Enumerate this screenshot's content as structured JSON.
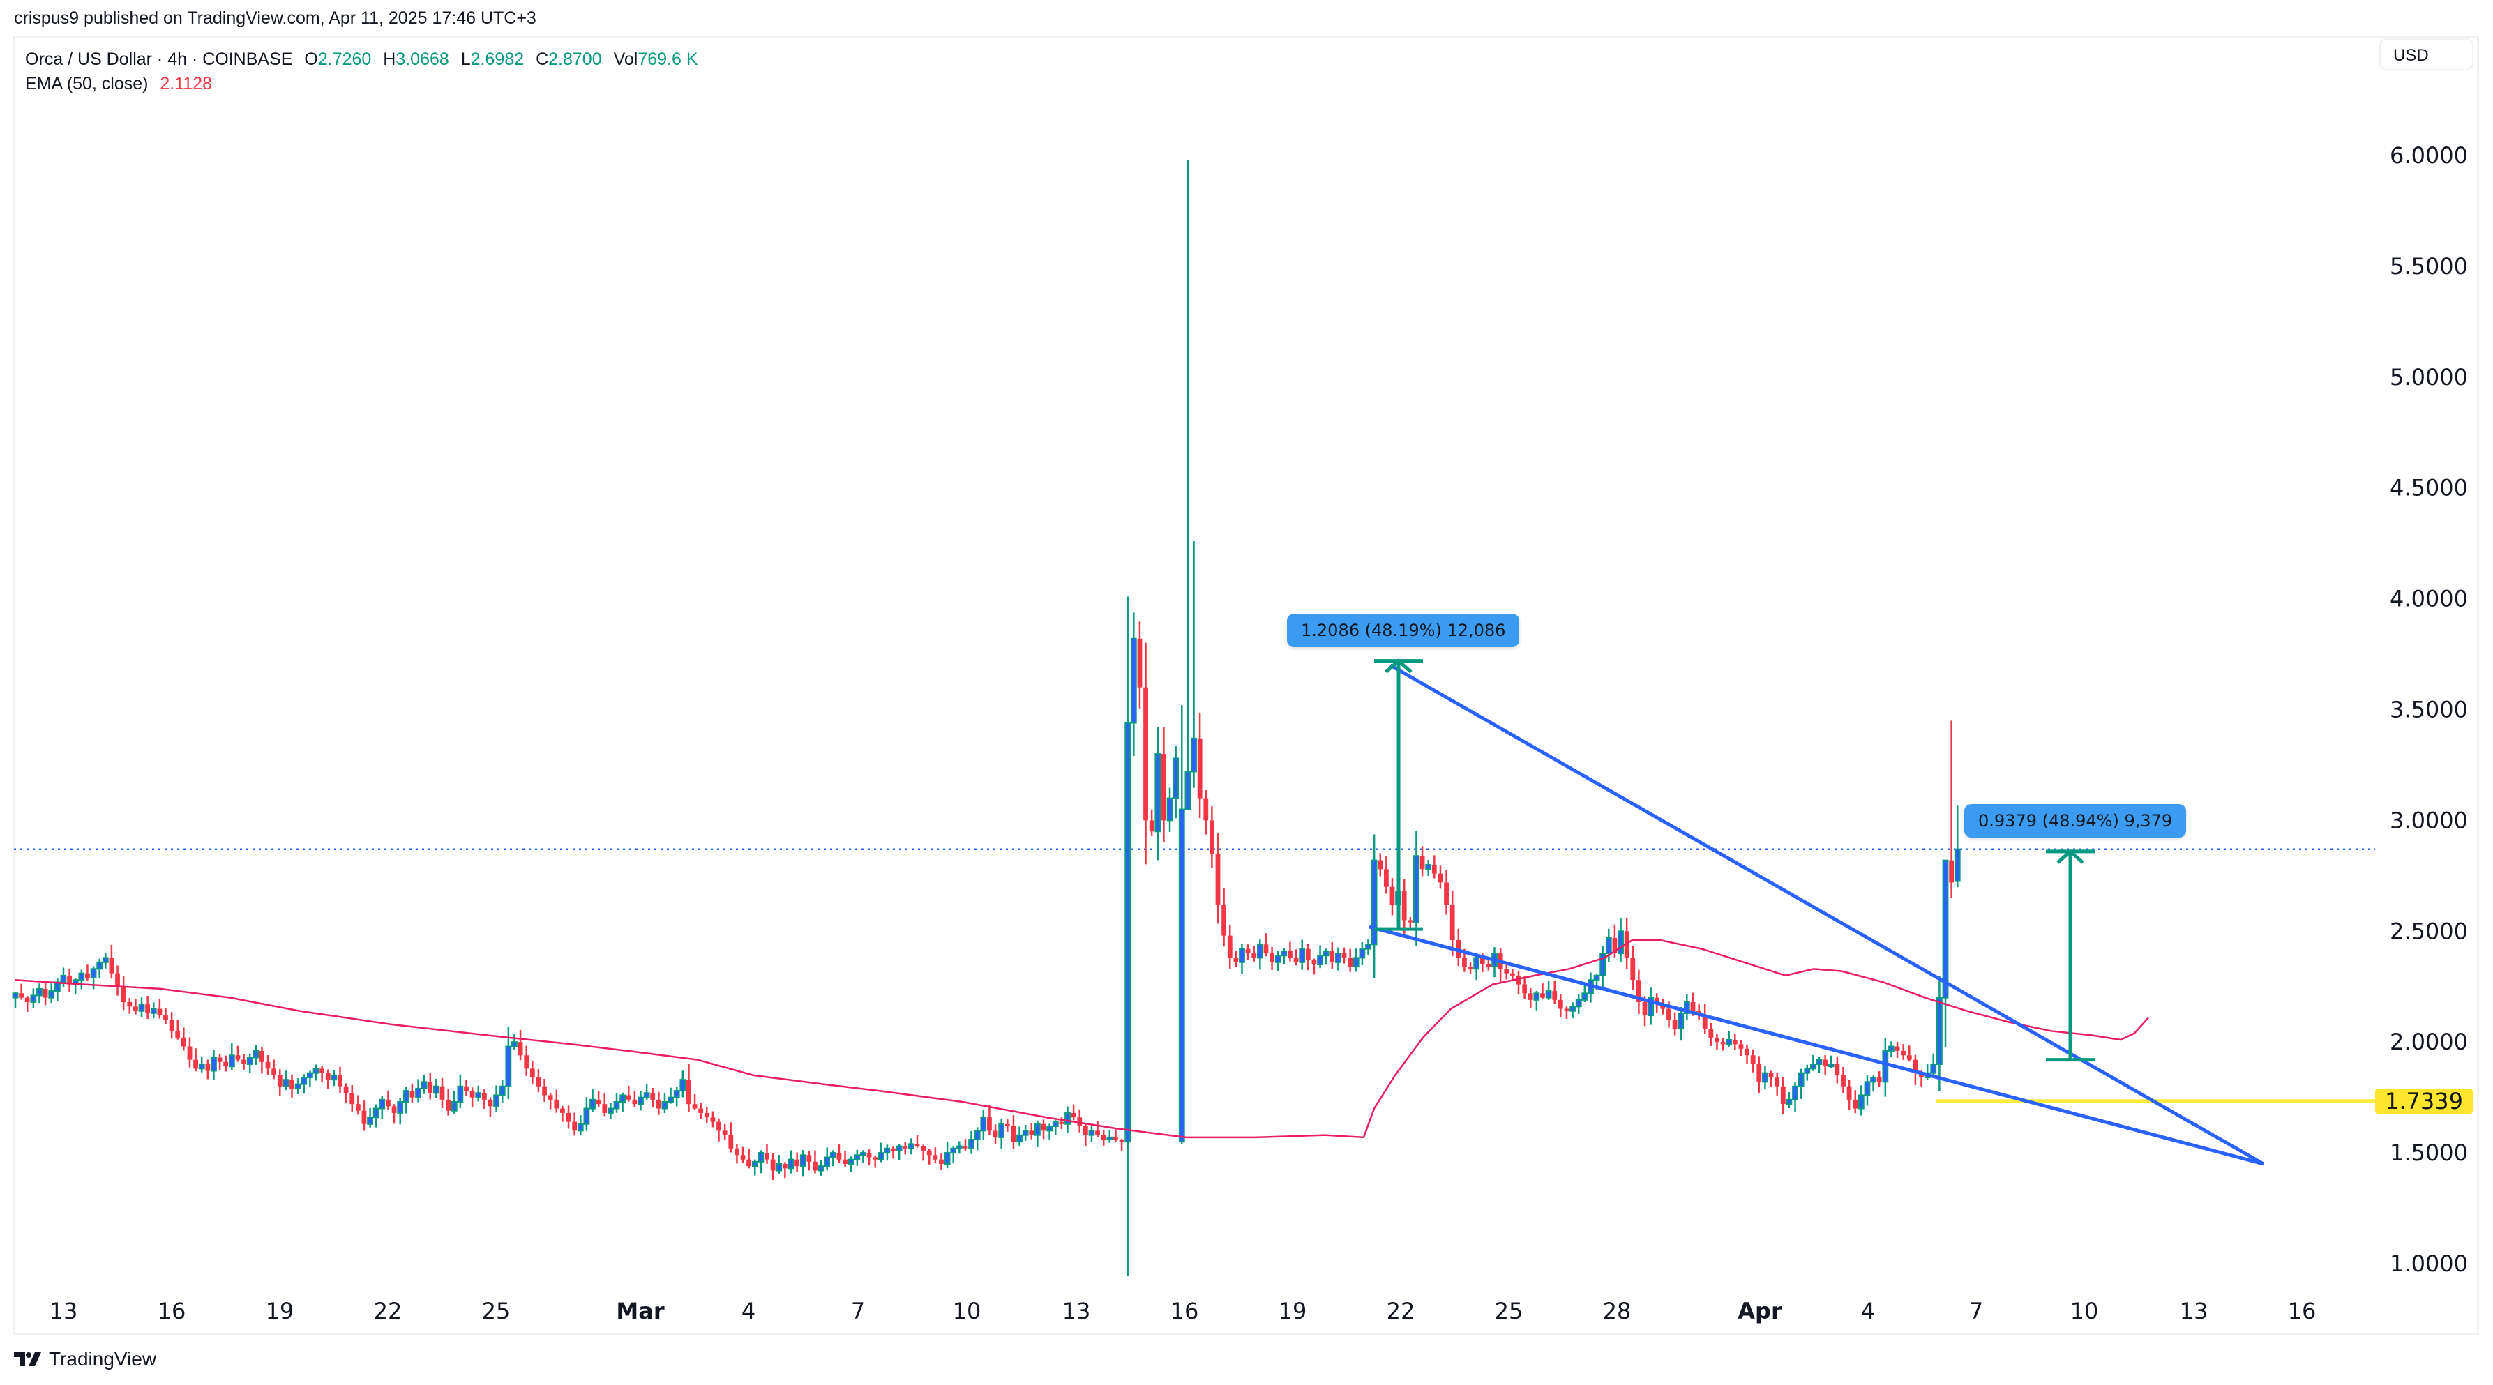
{
  "header": {
    "published": "crispus9 published on TradingView.com, Apr 11, 2025 17:46 UTC+3"
  },
  "legend": {
    "symbol": "Orca / US Dollar · 4h · COINBASE",
    "open_label": "O",
    "open": "2.7260",
    "high_label": "H",
    "high": "3.0668",
    "low_label": "L",
    "low": "2.6982",
    "close_label": "C",
    "close": "2.8700",
    "vol_label": "Vol",
    "vol": "769.6 K",
    "ema_label": "EMA (50, close)",
    "ema_value": "2.1128"
  },
  "currency_button": "USD",
  "footer": {
    "brand": "TradingView"
  },
  "colors": {
    "up_body": "#2962ff",
    "up_border": "#089981",
    "down": "#f23645",
    "ema": "#e91e63",
    "trendline": "#2962ff",
    "support": "#ffeb3b",
    "measure": "#089981",
    "label_bg": "#3a9bf0"
  },
  "annotations": {
    "measure1": "1.2086 (48.19%) 12,086",
    "measure2": "0.9379 (48.94%) 9,379",
    "support_price": "1.7339"
  },
  "chart_data": {
    "type": "candlestick",
    "title": "Orca / US Dollar · 4h · COINBASE",
    "xlabel": "",
    "ylabel": "USD",
    "ylim": [
      0.85,
      6.35
    ],
    "y_ticks": [
      "6.0000",
      "5.5000",
      "5.0000",
      "4.5000",
      "4.0000",
      "3.5000",
      "3.0000",
      "2.5000",
      "2.0000",
      "1.5000",
      "1.0000"
    ],
    "x_ticks": [
      {
        "label": "13",
        "x": 91
      },
      {
        "label": "16",
        "x": 246
      },
      {
        "label": "19",
        "x": 401
      },
      {
        "label": "22",
        "x": 556
      },
      {
        "label": "25",
        "x": 711
      },
      {
        "label": "Mar",
        "x": 918,
        "month": true
      },
      {
        "label": "4",
        "x": 1073
      },
      {
        "label": "7",
        "x": 1230
      },
      {
        "label": "10",
        "x": 1386
      },
      {
        "label": "13",
        "x": 1543
      },
      {
        "label": "16",
        "x": 1698
      },
      {
        "label": "19",
        "x": 1853
      },
      {
        "label": "22",
        "x": 2008
      },
      {
        "label": "25",
        "x": 2163
      },
      {
        "label": "28",
        "x": 2318
      },
      {
        "label": "Apr",
        "x": 2523,
        "month": true
      },
      {
        "label": "4",
        "x": 2678
      },
      {
        "label": "7",
        "x": 2833
      },
      {
        "label": "10",
        "x": 2988
      },
      {
        "label": "13",
        "x": 3145
      },
      {
        "label": "16",
        "x": 3300
      }
    ],
    "grid": false,
    "last_price": 2.87,
    "support_level": 1.7339,
    "ema_period": 50,
    "ema_last": 2.1128,
    "candle_x0": 22,
    "candle_step": 8.62,
    "closes": [
      2.22,
      2.2,
      2.18,
      2.21,
      2.24,
      2.2,
      2.23,
      2.27,
      2.3,
      2.26,
      2.28,
      2.31,
      2.29,
      2.33,
      2.36,
      2.38,
      2.31,
      2.25,
      2.18,
      2.16,
      2.14,
      2.17,
      2.13,
      2.15,
      2.12,
      2.1,
      2.05,
      2.02,
      1.98,
      1.92,
      1.88,
      1.9,
      1.87,
      1.93,
      1.91,
      1.89,
      1.94,
      1.92,
      1.9,
      1.93,
      1.96,
      1.91,
      1.88,
      1.85,
      1.8,
      1.83,
      1.79,
      1.81,
      1.84,
      1.86,
      1.88,
      1.86,
      1.83,
      1.85,
      1.8,
      1.77,
      1.72,
      1.69,
      1.63,
      1.66,
      1.7,
      1.74,
      1.71,
      1.68,
      1.73,
      1.78,
      1.75,
      1.79,
      1.82,
      1.77,
      1.8,
      1.74,
      1.69,
      1.73,
      1.8,
      1.78,
      1.75,
      1.77,
      1.74,
      1.71,
      1.76,
      1.8,
      1.98,
      2.0,
      1.94,
      1.88,
      1.84,
      1.8,
      1.76,
      1.74,
      1.7,
      1.68,
      1.64,
      1.6,
      1.63,
      1.7,
      1.74,
      1.72,
      1.68,
      1.7,
      1.73,
      1.76,
      1.74,
      1.72,
      1.75,
      1.77,
      1.74,
      1.7,
      1.73,
      1.75,
      1.78,
      1.83,
      1.72,
      1.7,
      1.68,
      1.66,
      1.64,
      1.6,
      1.58,
      1.52,
      1.49,
      1.47,
      1.44,
      1.46,
      1.5,
      1.47,
      1.42,
      1.45,
      1.43,
      1.47,
      1.44,
      1.49,
      1.46,
      1.42,
      1.44,
      1.48,
      1.5,
      1.47,
      1.45,
      1.47,
      1.49,
      1.5,
      1.48,
      1.47,
      1.5,
      1.52,
      1.51,
      1.53,
      1.52,
      1.54,
      1.53,
      1.51,
      1.49,
      1.47,
      1.45,
      1.5,
      1.52,
      1.53,
      1.52,
      1.56,
      1.6,
      1.66,
      1.6,
      1.57,
      1.63,
      1.62,
      1.55,
      1.58,
      1.6,
      1.58,
      1.63,
      1.6,
      1.62,
      1.64,
      1.63,
      1.68,
      1.66,
      1.62,
      1.58,
      1.6,
      1.58,
      1.56,
      1.57,
      1.56,
      1.55,
      3.44,
      3.82,
      3.6,
      3.0,
      2.95,
      3.3,
      3.0,
      3.1,
      3.28,
      3.05,
      3.22,
      3.37,
      3.1,
      3.0,
      2.85,
      2.62,
      2.48,
      2.38,
      2.36,
      2.42,
      2.4,
      2.38,
      2.44,
      2.4,
      2.36,
      2.39,
      2.41,
      2.38,
      2.36,
      2.42,
      2.37,
      2.35,
      2.39,
      2.41,
      2.36,
      2.4,
      2.38,
      2.34,
      2.38,
      2.42,
      2.44,
      2.82,
      2.78,
      2.7,
      2.62,
      2.68,
      2.55,
      2.54,
      2.84,
      2.78,
      2.8,
      2.76,
      2.72,
      2.62,
      2.46,
      2.38,
      2.34,
      2.33,
      2.38,
      2.35,
      2.34,
      2.4,
      2.33,
      2.31,
      2.3,
      2.26,
      2.22,
      2.19,
      2.22,
      2.2,
      2.23,
      2.19,
      2.15,
      2.14,
      2.16,
      2.19,
      2.22,
      2.28,
      2.3,
      2.4,
      2.47,
      2.4,
      2.5,
      2.38,
      2.28,
      2.18,
      2.12,
      2.2,
      2.17,
      2.15,
      2.1,
      2.06,
      2.13,
      2.18,
      2.14,
      2.12,
      2.06,
      2.02,
      2.0,
      1.99,
      2.01,
      1.99,
      1.97,
      1.94,
      1.9,
      1.82,
      1.86,
      1.84,
      1.8,
      1.72,
      1.74,
      1.8,
      1.86,
      1.88,
      1.9,
      1.92,
      1.89,
      1.9,
      1.85,
      1.8,
      1.74,
      1.7,
      1.76,
      1.82,
      1.84,
      1.82,
      1.96,
      1.98,
      1.96,
      1.94,
      1.92,
      1.86,
      1.84,
      1.86,
      1.9,
      2.2,
      2.82,
      2.72,
      2.87
    ],
    "ema": [
      [
        22,
        2.28
      ],
      [
        120,
        2.26
      ],
      [
        230,
        2.24
      ],
      [
        330,
        2.2
      ],
      [
        430,
        2.14
      ],
      [
        560,
        2.08
      ],
      [
        700,
        2.03
      ],
      [
        820,
        1.99
      ],
      [
        900,
        1.96
      ],
      [
        1000,
        1.92
      ],
      [
        1080,
        1.85
      ],
      [
        1180,
        1.81
      ],
      [
        1260,
        1.78
      ],
      [
        1380,
        1.73
      ],
      [
        1500,
        1.66
      ],
      [
        1600,
        1.61
      ],
      [
        1700,
        1.57
      ],
      [
        1800,
        1.57
      ],
      [
        1900,
        1.58
      ],
      [
        1955,
        1.57
      ],
      [
        1970,
        1.7
      ],
      [
        2000,
        1.85
      ],
      [
        2040,
        2.02
      ],
      [
        2080,
        2.15
      ],
      [
        2140,
        2.26
      ],
      [
        2200,
        2.3
      ],
      [
        2250,
        2.33
      ],
      [
        2300,
        2.38
      ],
      [
        2340,
        2.46
      ],
      [
        2380,
        2.46
      ],
      [
        2440,
        2.42
      ],
      [
        2500,
        2.36
      ],
      [
        2560,
        2.3
      ],
      [
        2600,
        2.33
      ],
      [
        2640,
        2.32
      ],
      [
        2700,
        2.27
      ],
      [
        2760,
        2.2
      ],
      [
        2820,
        2.14
      ],
      [
        2880,
        2.09
      ],
      [
        2940,
        2.05
      ],
      [
        3000,
        2.03
      ],
      [
        3040,
        2.01
      ],
      [
        3060,
        2.04
      ],
      [
        3080,
        2.11
      ]
    ],
    "trendlines": [
      {
        "name": "upper",
        "p1": [
          1993,
          3.7
        ],
        "p2": [
          3245,
          1.45
        ]
      },
      {
        "name": "lower",
        "p1": [
          1963,
          2.52
        ],
        "p2": [
          3245,
          1.45
        ]
      }
    ],
    "measures": [
      {
        "x": 2005,
        "from": 2.51,
        "to": 3.72,
        "label": "1.2086 (48.19%) 12,086"
      },
      {
        "x": 2968,
        "from": 1.92,
        "to": 2.86,
        "label": "0.9379 (48.94%) 9,379"
      }
    ]
  }
}
